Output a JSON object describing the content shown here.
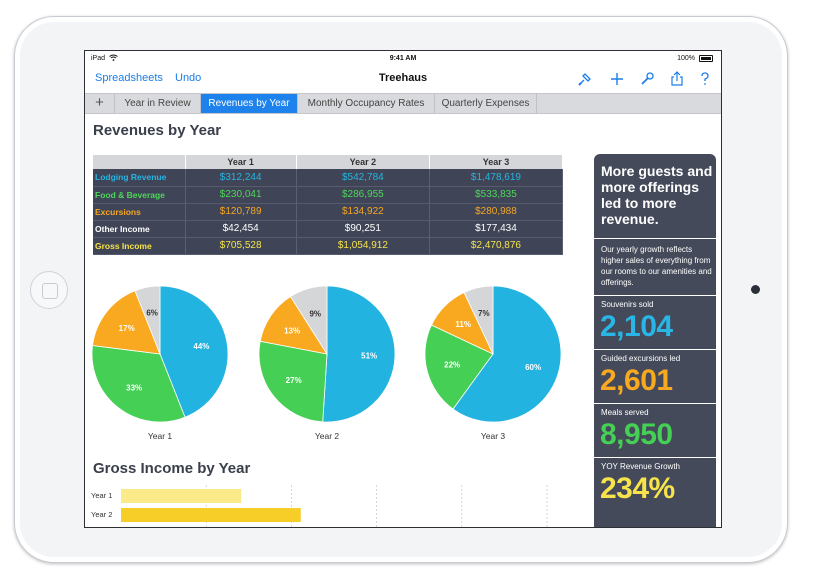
{
  "status": {
    "carrier": "iPad",
    "time": "9:41 AM",
    "battery": "100%"
  },
  "nav": {
    "back_label": "Spreadsheets",
    "undo_label": "Undo",
    "title": "Treehaus"
  },
  "tabs": [
    {
      "label": "Year in Review",
      "active": false
    },
    {
      "label": "Revenues by Year",
      "active": true
    },
    {
      "label": "Monthly Occupancy Rates",
      "active": false
    },
    {
      "label": "Quarterly Expenses",
      "active": false
    }
  ],
  "page_title": "Revenues by Year",
  "table": {
    "headers": [
      "Year 1",
      "Year 2",
      "Year 3"
    ],
    "rows": [
      {
        "label": "Lodging Revenue",
        "color": "#25b5e3",
        "values": [
          "$312,244",
          "$542,784",
          "$1,478,619"
        ]
      },
      {
        "label": "Food & Beverage",
        "color": "#4fd65a",
        "values": [
          "$230,041",
          "$286,955",
          "$533,835"
        ]
      },
      {
        "label": "Excursions",
        "color": "#f6a623",
        "values": [
          "$120,789",
          "$134,922",
          "$280,988"
        ]
      },
      {
        "label": "Other Income",
        "color": "#ffffff",
        "values": [
          "$42,454",
          "$90,251",
          "$177,434"
        ]
      },
      {
        "label": "Gross Income",
        "color": "#f6e44a",
        "values": [
          "$705,528",
          "$1,054,912",
          "$2,470,876"
        ]
      }
    ]
  },
  "chart_data": [
    {
      "type": "pie",
      "title": "Year 1",
      "labels": [
        "Lodging Revenue",
        "Food & Beverage",
        "Excursions",
        "Other Income"
      ],
      "values": [
        44,
        33,
        17,
        6
      ],
      "value_labels": [
        "44%",
        "33%",
        "17%",
        "6%"
      ],
      "colors": [
        "#23b3e0",
        "#45cf55",
        "#f8a91f",
        "#d5d6d8"
      ]
    },
    {
      "type": "pie",
      "title": "Year 2",
      "labels": [
        "Lodging Revenue",
        "Food & Beverage",
        "Excursions",
        "Other Income"
      ],
      "values": [
        51,
        27,
        13,
        9
      ],
      "value_labels": [
        "51%",
        "27%",
        "13%",
        "9%"
      ],
      "colors": [
        "#23b3e0",
        "#45cf55",
        "#f8a91f",
        "#d5d6d8"
      ]
    },
    {
      "type": "pie",
      "title": "Year 3",
      "labels": [
        "Lodging Revenue",
        "Food & Beverage",
        "Excursions",
        "Other Income"
      ],
      "values": [
        60,
        22,
        11,
        7
      ],
      "value_labels": [
        "60%",
        "22%",
        "11%",
        "7%"
      ],
      "colors": [
        "#23b3e0",
        "#45cf55",
        "#f8a91f",
        "#d5d6d8"
      ]
    },
    {
      "type": "bar",
      "title": "Gross Income by Year",
      "categories": [
        "Year 1",
        "Year 2"
      ],
      "values": [
        705528,
        1054912
      ],
      "colors": [
        "#fbea8a",
        "#f7cd27"
      ],
      "xlim": [
        0,
        2500000
      ],
      "grid": true
    }
  ],
  "section2_title": "Gross Income by Year",
  "sidebar": {
    "headline": "More guests and more offerings led to more revenue.",
    "text": "Our yearly growth reflects higher sales of everything from our rooms to our amenities and offerings.",
    "stats": [
      {
        "label": "Souvenirs sold",
        "value": "2,104",
        "color": "#29b6e6"
      },
      {
        "label": "Guided excursions led",
        "value": "2,601",
        "color": "#f8a91f"
      },
      {
        "label": "Meals served",
        "value": "8,950",
        "color": "#45cf55"
      },
      {
        "label": "YOY Revenue Growth",
        "value": "234%",
        "color": "#f6e44a"
      }
    ]
  },
  "icons": [
    "format-brush-icon",
    "add-icon",
    "wrench-icon",
    "share-icon",
    "help-icon"
  ]
}
